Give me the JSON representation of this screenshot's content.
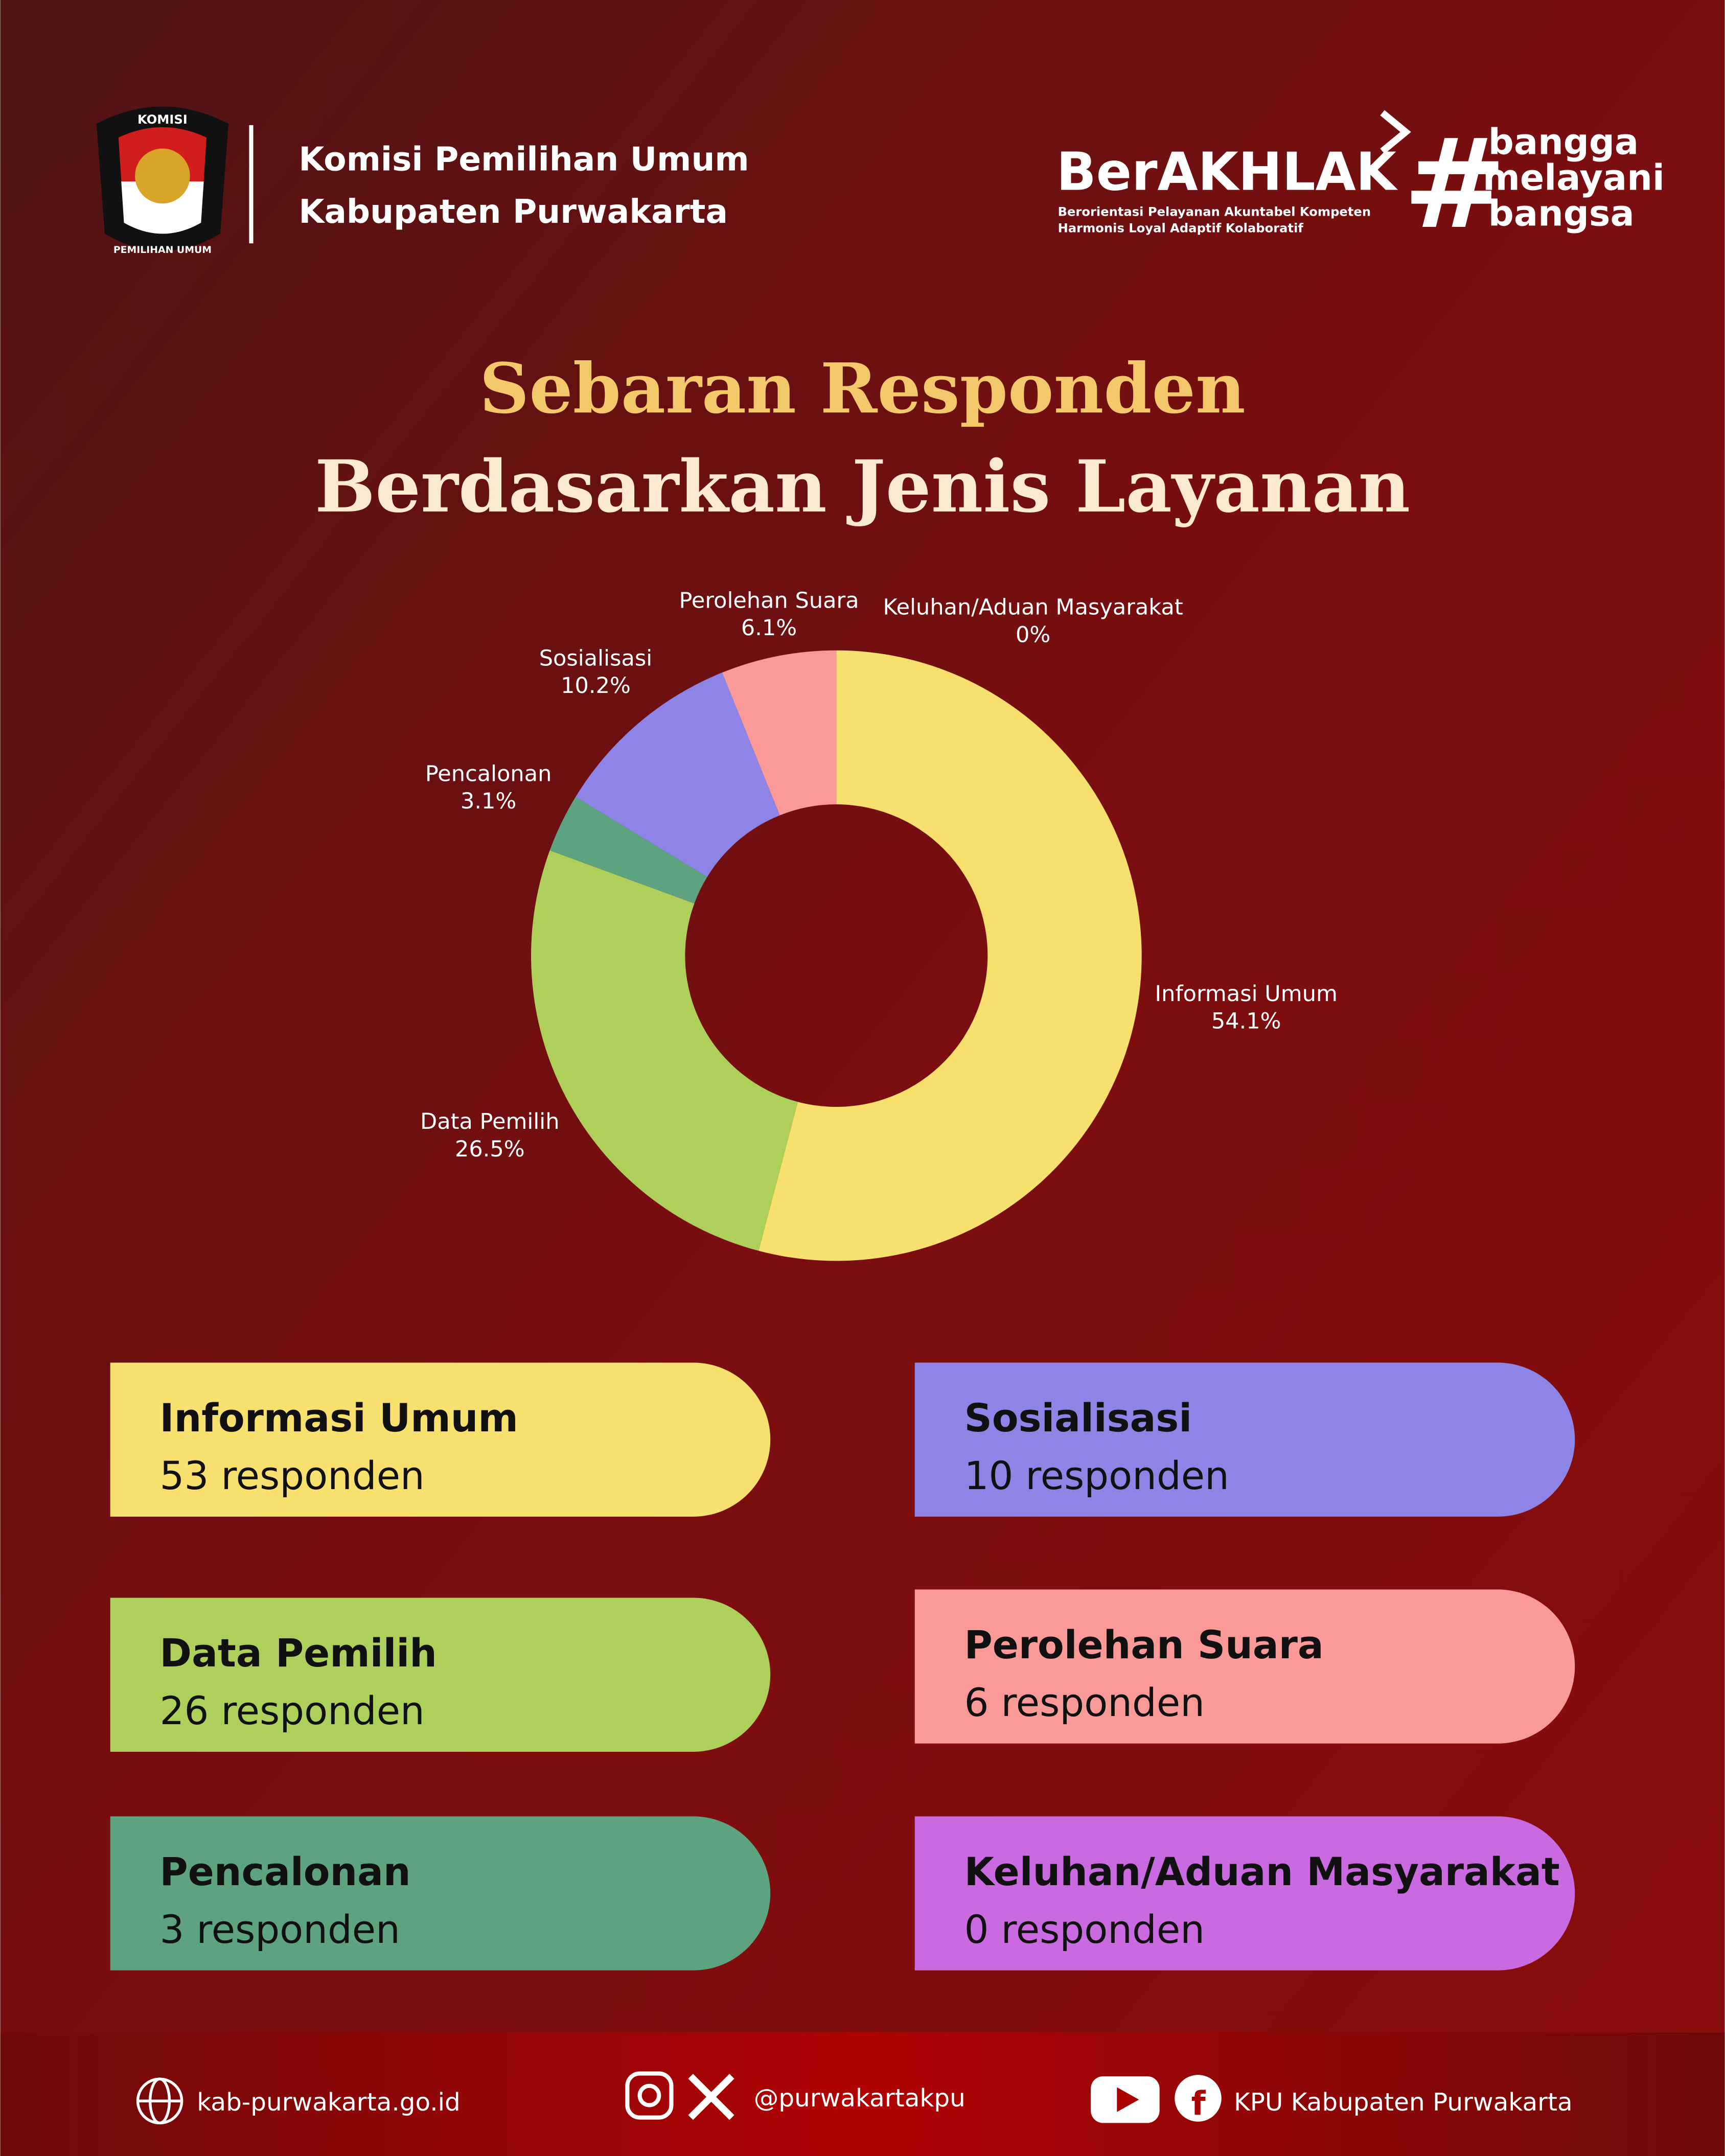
{
  "header": {
    "logo_top": "KOMISI",
    "logo_bottom": "PEMILIHAN UMUM",
    "org_lines": [
      "Komisi Pemilihan Umum",
      "Kabupaten Purwakarta"
    ],
    "brand": "BerAKHLAK",
    "brand_tagline": [
      "Berorientasi Pelayanan Akuntabel Kompeten",
      "Harmonis Loyal Adaptif Kolaboratif"
    ],
    "hashtag": [
      "bangga",
      "melayani",
      "bangsa"
    ]
  },
  "chart_data": {
    "type": "donut",
    "title": "Sebaran Responden",
    "subtitle": "Berdasarkan Jenis Layanan",
    "categories": [
      "Informasi Umum",
      "Data Pemilih",
      "Pencalonan",
      "Sosialisasi",
      "Perolehan Suara",
      "Keluhan/Aduan Masyarakat"
    ],
    "values": [
      54.1,
      26.5,
      3.1,
      10.2,
      6.1,
      0
    ],
    "value_labels": [
      "54.1%",
      "26.5%",
      "3.1%",
      "10.2%",
      "6.1%",
      "0%"
    ],
    "colors": [
      "#f7e06e",
      "#aecf5a",
      "#5ea380",
      "#8d84e6",
      "#f99a99",
      "#c96ae0"
    ]
  },
  "cards": [
    {
      "name": "Informasi Umum",
      "count": "53 responden"
    },
    {
      "name": "Sosialisasi",
      "count": "10 responden"
    },
    {
      "name": "Data Pemilih",
      "count": "26 responden"
    },
    {
      "name": "Perolehan Suara",
      "count": "6 responden"
    },
    {
      "name": "Pencalonan",
      "count": "3 responden"
    },
    {
      "name": "Keluhan/Aduan Masyarakat",
      "count": "0 responden"
    }
  ],
  "footer": {
    "website": "kab-purwakarta.go.id",
    "social": "@purwakartakpu",
    "channel": "KPU Kabupaten Purwakarta"
  }
}
